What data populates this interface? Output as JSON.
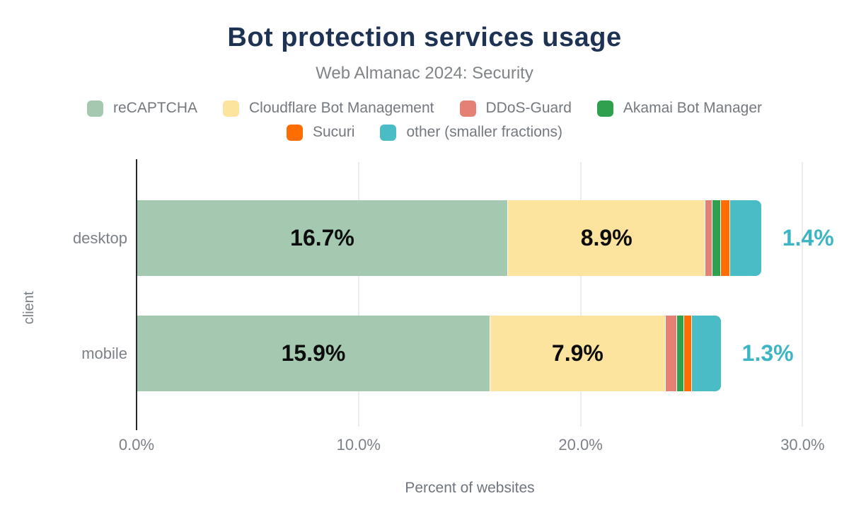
{
  "chart_data": {
    "type": "bar",
    "orientation": "horizontal",
    "stacked": true,
    "title": "Bot protection services usage",
    "subtitle": "Web Almanac 2024: Security",
    "xlabel": "Percent of websites",
    "ylabel": "client",
    "categories": [
      "desktop",
      "mobile"
    ],
    "series": [
      {
        "name": "reCAPTCHA",
        "color": "#a4c8b0",
        "values": [
          16.7,
          15.9
        ],
        "labels": [
          "16.7%",
          "15.9%"
        ]
      },
      {
        "name": "Cloudflare Bot Management",
        "color": "#fce49e",
        "values": [
          8.9,
          7.9
        ],
        "labels": [
          "8.9%",
          "7.9%"
        ]
      },
      {
        "name": "DDoS-Guard",
        "color": "#e48074",
        "values": [
          0.3,
          0.5
        ]
      },
      {
        "name": "Akamai Bot Manager",
        "color": "#2fa14e",
        "values": [
          0.4,
          0.35
        ]
      },
      {
        "name": "Sucuri",
        "color": "#fe6d00",
        "values": [
          0.4,
          0.33
        ]
      },
      {
        "name": "other (smaller fractions)",
        "color": "#4abcc6",
        "values": [
          1.4,
          1.3
        ]
      }
    ],
    "outside_labels": {
      "values": [
        "1.4%",
        "1.3%"
      ],
      "color": "#3db5c4"
    },
    "x_ticks": [
      {
        "label": "0.0%",
        "pct": 0
      },
      {
        "label": "10.0%",
        "pct": 10
      },
      {
        "label": "20.0%",
        "pct": 20
      },
      {
        "label": "30.0%",
        "pct": 30
      }
    ],
    "xlim": [
      0,
      30
    ],
    "grid": "vertical-gridlines-at-ticks",
    "legend_position": "top",
    "legend_rows": [
      [
        0,
        1,
        2,
        3
      ],
      [
        4,
        5
      ]
    ],
    "theme": {
      "title_color": "#1e3354",
      "subtitle_color": "#818487",
      "axis_text_color": "#7b8187",
      "bar_label_color": "#0d0d0d",
      "background": "#ffffff"
    }
  }
}
